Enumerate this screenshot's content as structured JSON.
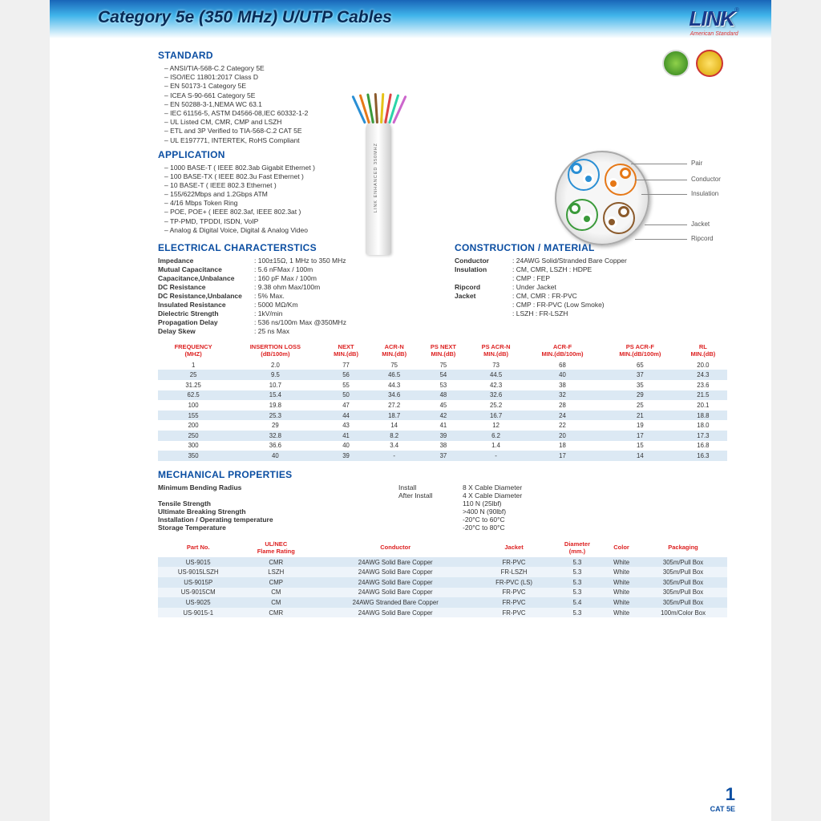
{
  "banner": {
    "title": "Category 5e (350 MHz)  U/UTP Cables"
  },
  "logo": {
    "name": "LINK",
    "tagline": "American Standard",
    "reg": "®"
  },
  "pagenum": {
    "n": "1",
    "cat": "CAT 5E"
  },
  "cable_side_label": "LINK ENHANCED 350MHZ",
  "sections": {
    "standard": "STANDARD",
    "application": "APPLICATION",
    "electrical": "ELECTRICAL CHARACTERSTICS",
    "construction": "CONSTRUCTION / MATERIAL",
    "mechanical": "MECHANICAL PROPERTIES"
  },
  "standard": [
    "ANSI/TIA-568-C.2 Category 5E",
    "ISO/IEC 11801:2017 Class D",
    "EN 50173-1 Category 5E",
    "ICEA S-90-661 Category 5E",
    "EN 50288-3-1,NEMA WC 63.1",
    "IEC 61156-5, ASTM D4566-08,IEC 60332-1-2",
    "UL Listed CM, CMR, CMP and LSZH",
    "ETL and 3P Verified to TIA-568-C.2 CAT 5E",
    "UL E197771, INTERTEK, RoHS Compliant"
  ],
  "application": [
    "1000 BASE-T  ( IEEE 802.3ab Gigabit Ethernet )",
    "100 BASE-TX  ( IEEE 802.3u Fast Ethernet )",
    "10 BASE-T ( IEEE 802.3 Ethernet )",
    "155/622Mbps and 1.2Gbps ATM",
    "4/16 Mbps Token Ring",
    "POE, POE+ ( IEEE 802.3af, IEEE 802.3at )",
    "TP-PMD, TPDDI, ISDN, VoIP",
    "Analog & Digital Voice, Digital & Analog Video"
  ],
  "electrical": [
    {
      "k": "Impedance",
      "v": "100±15Ω, 1 MHz to 350 MHz"
    },
    {
      "k": "Mutual Capacitance",
      "v": "5.6 nFMax / 100m"
    },
    {
      "k": "Capacitance,Unbalance",
      "v": "160 pF Max / 100m"
    },
    {
      "k": "DC Resistance",
      "v": "9.38 ohm Max/100m"
    },
    {
      "k": "DC Resistance,Unbalance",
      "v": "5% Max."
    },
    {
      "k": "Insulated Resistance",
      "v": "5000 MΩ/Km"
    },
    {
      "k": "Dielectric Strength",
      "v": "1kV/min"
    },
    {
      "k": "Propagation Delay",
      "v": "536 ns/100m Max @350MHz"
    },
    {
      "k": "Delay Skew",
      "v": "25 ns Max"
    }
  ],
  "construction": [
    {
      "k": "Conductor",
      "v": "24AWG Solid/Stranded Bare Copper"
    },
    {
      "k": "Insulation",
      "v": "CM, CMR, LSZH  :  HDPE"
    },
    {
      "k": "",
      "v": "CMP  :  FEP",
      "indent": true
    },
    {
      "k": "Ripcord",
      "v": "Under Jacket"
    },
    {
      "k": "Jacket",
      "v": "CM, CMR  :  FR-PVC"
    },
    {
      "k": "",
      "v": "CMP  :  FR-PVC (Low Smoke)",
      "indent": true
    },
    {
      "k": "",
      "v": "LSZH  :  FR-LSZH",
      "indent": true
    }
  ],
  "cross_labels": [
    "Pair",
    "Conductor",
    "Insulation",
    "Jacket",
    "Ripcord"
  ],
  "freq_table": {
    "headers": [
      "FREQUENCY (MHZ)",
      "INSERTION LOSS (dB/100m)",
      "NEXT MIN.(dB)",
      "ACR-N MIN.(dB)",
      "PS NEXT MIN.(dB)",
      "PS ACR-N MIN.(dB)",
      "ACR-F MIN.(dB/100m)",
      "PS ACR-F MIN.(dB/100m)",
      "RL MIN.(dB)"
    ],
    "header_color": "#d22",
    "row_stripe_even": "#dce9f4",
    "row_stripe_odd": "#ffffff",
    "rows": [
      [
        "1",
        "2.0",
        "77",
        "75",
        "75",
        "73",
        "68",
        "65",
        "20.0"
      ],
      [
        "25",
        "9.5",
        "56",
        "46.5",
        "54",
        "44.5",
        "40",
        "37",
        "24.3"
      ],
      [
        "31.25",
        "10.7",
        "55",
        "44.3",
        "53",
        "42.3",
        "38",
        "35",
        "23.6"
      ],
      [
        "62.5",
        "15.4",
        "50",
        "34.6",
        "48",
        "32.6",
        "32",
        "29",
        "21.5"
      ],
      [
        "100",
        "19.8",
        "47",
        "27.2",
        "45",
        "25.2",
        "28",
        "25",
        "20.1"
      ],
      [
        "155",
        "25.3",
        "44",
        "18.7",
        "42",
        "16.7",
        "24",
        "21",
        "18.8"
      ],
      [
        "200",
        "29",
        "43",
        "14",
        "41",
        "12",
        "22",
        "19",
        "18.0"
      ],
      [
        "250",
        "32.8",
        "41",
        "8.2",
        "39",
        "6.2",
        "20",
        "17",
        "17.3"
      ],
      [
        "300",
        "36.6",
        "40",
        "3.4",
        "38",
        "1.4",
        "18",
        "15",
        "16.8"
      ],
      [
        "350",
        "40",
        "39",
        "-",
        "37",
        "-",
        "17",
        "14",
        "16.3"
      ]
    ]
  },
  "mechanical": [
    {
      "k": "Minimum Bending Radius",
      "m": "Install",
      "v": "8 X Cable Diameter"
    },
    {
      "k": "",
      "m": "After Install",
      "v": "4 X Cable Diameter"
    },
    {
      "k": "Tensile Strength",
      "m": "",
      "v": "110 N (25lbf)"
    },
    {
      "k": "Ultimate Breaking Strength",
      "m": "",
      "v": ">400 N (90lbf)"
    },
    {
      "k": "Installation / Operating temperature",
      "m": "",
      "v": "-20°C to 60°C"
    },
    {
      "k": "Storage Temperature",
      "m": "",
      "v": "-20°C to 80°C"
    }
  ],
  "parts_table": {
    "headers": [
      "Part No.",
      "UL/NEC Flame Rating",
      "Conductor",
      "Jacket",
      "Diameter (mm.)",
      "Color",
      "Packaging"
    ],
    "header_color": "#d22",
    "rows": [
      [
        "US-9015",
        "CMR",
        "24AWG Solid Bare Copper",
        "FR-PVC",
        "5.3",
        "White",
        "305m/Pull Box"
      ],
      [
        "US-9015LSZH",
        "LSZH",
        "24AWG Solid Bare Copper",
        "FR-LSZH",
        "5.3",
        "White",
        "305m/Pull Box"
      ],
      [
        "US-9015P",
        "CMP",
        "24AWG Solid Bare Copper",
        "FR-PVC (LS)",
        "5.3",
        "White",
        "305m/Pull Box"
      ],
      [
        "US-9015CM",
        "CM",
        "24AWG Solid Bare Copper",
        "FR-PVC",
        "5.3",
        "White",
        "305m/Pull Box"
      ],
      [
        "US-9025",
        "CM",
        "24AWG Stranded Bare Copper",
        "FR-PVC",
        "5.4",
        "White",
        "305m/Pull Box"
      ],
      [
        "US-9015-1",
        "CMR",
        "24AWG Solid Bare Copper",
        "FR-PVC",
        "5.3",
        "White",
        "100m/Color Box"
      ]
    ]
  },
  "wire_colors": [
    "#2a8fd4",
    "#e67817",
    "#3a9a3a",
    "#8b5a2b",
    "#e6c217",
    "#d44",
    "#2ad4a8",
    "#c6c"
  ]
}
